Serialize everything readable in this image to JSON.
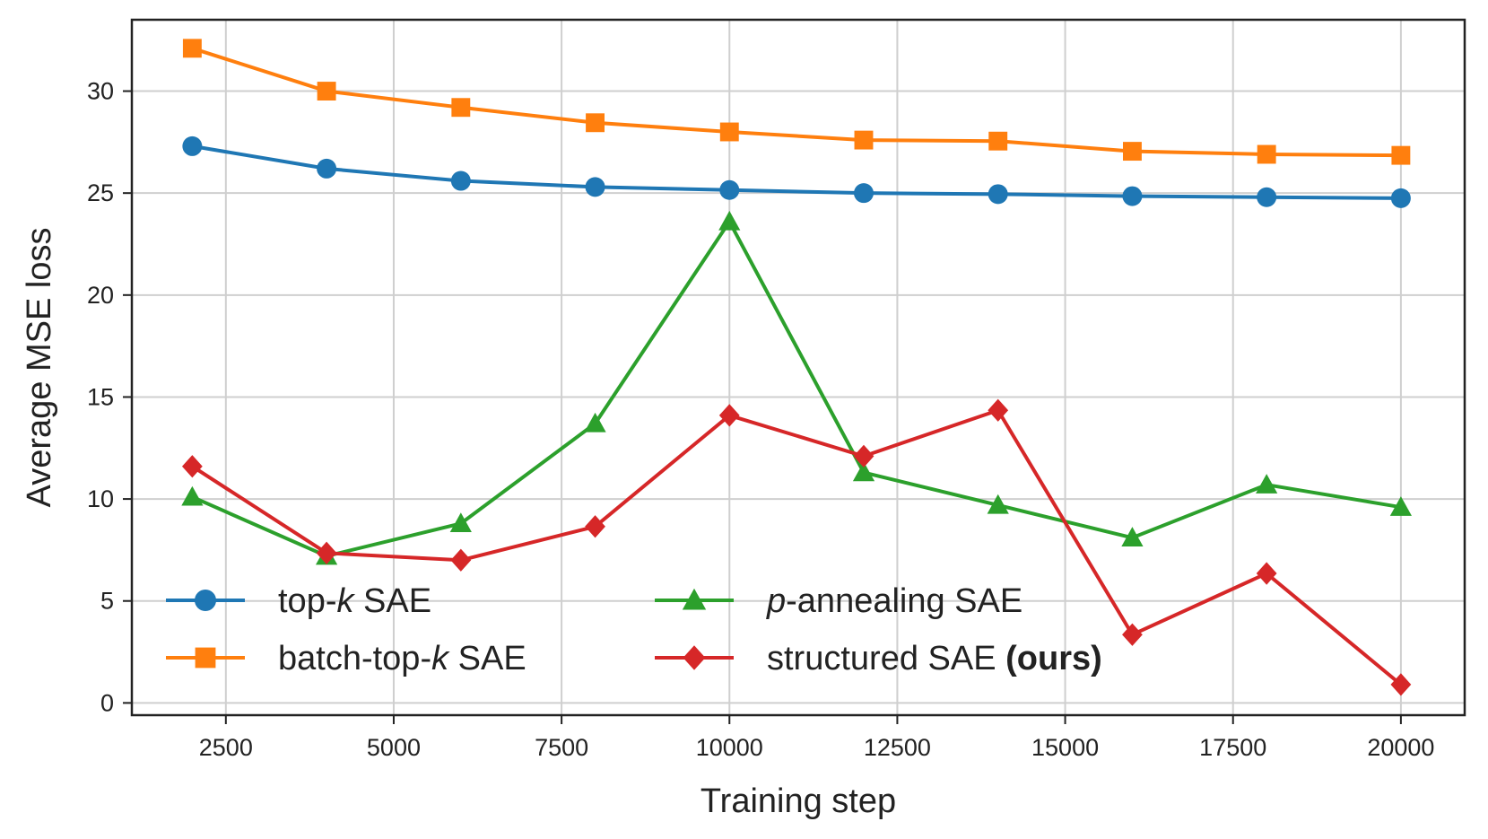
{
  "chart_data": {
    "type": "line",
    "title": "",
    "xlabel": "Training step",
    "ylabel": "Average MSE loss",
    "xlim": [
      1100,
      20950
    ],
    "ylim": [
      -0.6,
      33.5
    ],
    "xticks": [
      2500,
      5000,
      7500,
      10000,
      12500,
      15000,
      17500,
      20000
    ],
    "xtick_labels": [
      "2500",
      "5000",
      "7500",
      "10000",
      "12500",
      "15000",
      "17500",
      "20000"
    ],
    "yticks": [
      0,
      5,
      10,
      15,
      20,
      25,
      30
    ],
    "ytick_labels": [
      "0",
      "5",
      "10",
      "15",
      "20",
      "25",
      "30"
    ],
    "grid": true,
    "legend_position": "bottom-left",
    "x": [
      2000,
      4000,
      6000,
      8000,
      10000,
      12000,
      14000,
      16000,
      18000,
      20000
    ],
    "series": [
      {
        "name": "top-k SAE",
        "legend_parts": [
          {
            "t": "top-",
            "s": "n"
          },
          {
            "t": "k",
            "s": "i"
          },
          {
            "t": " SAE",
            "s": "n"
          }
        ],
        "color": "#1f77b4",
        "marker": "circle",
        "values": [
          27.3,
          26.2,
          25.6,
          25.3,
          25.15,
          25.0,
          24.95,
          24.85,
          24.8,
          24.75
        ]
      },
      {
        "name": "batch-top-k SAE",
        "legend_parts": [
          {
            "t": "batch-top-",
            "s": "n"
          },
          {
            "t": "k",
            "s": "i"
          },
          {
            "t": " SAE",
            "s": "n"
          }
        ],
        "color": "#ff7f0e",
        "marker": "square",
        "values": [
          32.1,
          30.0,
          29.2,
          28.45,
          28.0,
          27.6,
          27.55,
          27.05,
          26.9,
          26.85
        ]
      },
      {
        "name": "p-annealing SAE",
        "legend_parts": [
          {
            "t": "p",
            "s": "i"
          },
          {
            "t": "-annealing SAE",
            "s": "n"
          }
        ],
        "color": "#2ca02c",
        "marker": "triangle",
        "values": [
          10.1,
          7.2,
          8.8,
          13.7,
          23.6,
          11.3,
          9.7,
          8.1,
          10.7,
          9.6
        ]
      },
      {
        "name": "structured SAE (ours)",
        "legend_parts": [
          {
            "t": "structured SAE ",
            "s": "n"
          },
          {
            "t": "(ours)",
            "s": "b"
          }
        ],
        "color": "#d62728",
        "marker": "diamond",
        "values": [
          11.6,
          7.35,
          7.0,
          8.65,
          14.1,
          12.1,
          14.35,
          3.35,
          6.35,
          0.9
        ]
      }
    ]
  }
}
